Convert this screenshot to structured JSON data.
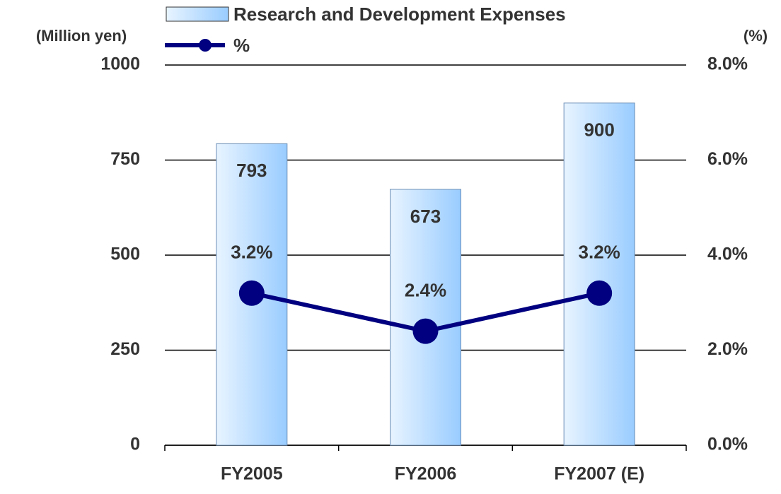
{
  "chart_data": {
    "type": "combo",
    "categories": [
      "FY2005",
      "FY2006",
      "FY2007 (E)"
    ],
    "series": [
      {
        "name": "Research and Development Expenses",
        "type": "bar",
        "color": "#99ccff",
        "values": [
          793,
          673,
          900
        ]
      },
      {
        "name": "%",
        "type": "line",
        "axis": "y2",
        "color": "#000080",
        "values": [
          3.2,
          2.4,
          3.2
        ],
        "value_labels": [
          "3.2%",
          "2.4%",
          "3.2%"
        ]
      }
    ],
    "y_label": "(Million yen)",
    "y2_label": "(%)",
    "ylim": [
      0,
      1000
    ],
    "yticks": [
      0,
      250,
      500,
      750,
      1000
    ],
    "y2lim": [
      0,
      8
    ],
    "y2ticks": [
      {
        "value": 0,
        "label": "0.0%"
      },
      {
        "value": 2,
        "label": "2.0%"
      },
      {
        "value": 4,
        "label": "4.0%"
      },
      {
        "value": 6,
        "label": "6.0%"
      },
      {
        "value": 8,
        "label": "8.0%"
      }
    ],
    "grid": true
  }
}
